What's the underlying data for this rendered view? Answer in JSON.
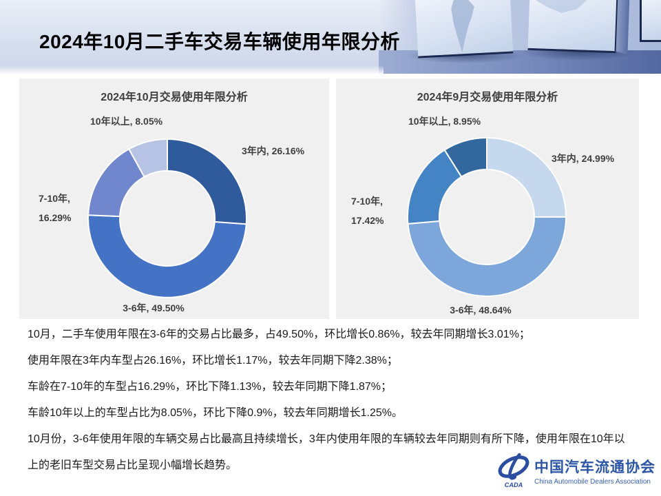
{
  "page_title": "2024年10月二手车交易车辆使用年限分析",
  "chart_data": [
    {
      "type": "pie",
      "subtype": "donut",
      "title": "2024年10月交易使用年限分析",
      "categories": [
        "3年内",
        "3-6年",
        "7-10年",
        "10年以上"
      ],
      "values": [
        26.16,
        49.5,
        16.29,
        8.05
      ],
      "colors": [
        "#2f5a9c",
        "#4472c4",
        "#7087ce",
        "#b7c3e5"
      ],
      "start_angle_deg": 0,
      "direction": "clockwise",
      "legend": "none",
      "labels": {
        "top": "10年以上, 8.05%",
        "right": "3年内, 26.16%",
        "left_line1": "7-10年,",
        "left_line2": "16.29%",
        "bottom": "3-6年, 49.50%"
      }
    },
    {
      "type": "pie",
      "subtype": "donut",
      "title": "2024年9月交易使用年限分析",
      "categories": [
        "3年内",
        "3-6年",
        "7-10年",
        "10年以上"
      ],
      "values": [
        24.99,
        48.64,
        17.42,
        8.95
      ],
      "colors": [
        "#c5d8ee",
        "#7da6da",
        "#4484c4",
        "#32689d"
      ],
      "start_angle_deg": 0,
      "direction": "clockwise",
      "legend": "none",
      "labels": {
        "top": "10年以上, 8.95%",
        "right": "3年内, 24.99%",
        "left_line1": "7-10年,",
        "left_line2": "17.42%",
        "bottom": "3-6年, 48.64%"
      }
    }
  ],
  "summary_lines": [
    "10月，二手车使用年限在3-6年的交易占比最多，占49.50%，环比增长0.86%，较去年同期增长3.01%；",
    "使用年限在3年内车型占26.16%，环比增长1.17%，较去年同期下降2.38%；",
    "车龄在7-10年的车型占16.29%，环比下降1.13%，较去年同期下降1.87%；",
    "车龄10年以上的车型占比为8.05%，环比下降0.9%，较去年同期增长1.25%。",
    "10月份，3-6年使用年限的车辆交易占比最高且持续增长，3年内使用年限的车辆较去年同期则有所下降，使用年限在10年以",
    "上的老旧车型交易占比呈现小幅增长趋势。"
  ],
  "logo": {
    "mark_text": "CADA",
    "name_cn": "中国汽车流通协会",
    "name_en": "China Automobile Dealers Association",
    "brand_color": "#2b55a5"
  }
}
